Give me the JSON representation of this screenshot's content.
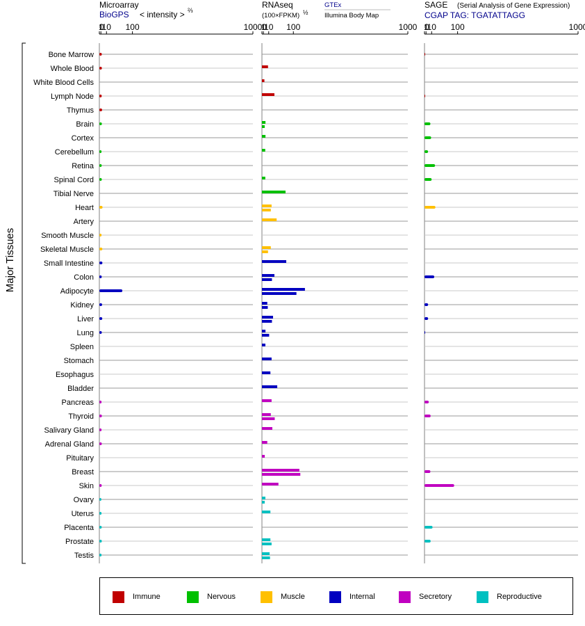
{
  "chart_data": {
    "type": "bar",
    "orientation": "horizontal",
    "axis_title": "Major Tissues",
    "axis_scale": "power 2/3",
    "ticks": [
      "0",
      "1",
      "10",
      "100",
      "1000"
    ],
    "tick_values": [
      0,
      1,
      10,
      100,
      1000
    ],
    "categories": [
      "Bone Marrow",
      "Whole Blood",
      "White Blood Cells",
      "Lymph Node",
      "Thymus",
      "Brain",
      "Cortex",
      "Cerebellum",
      "Retina",
      "Spinal Cord",
      "Tibial Nerve",
      "Heart",
      "Artery",
      "Smooth Muscle",
      "Skeletal Muscle",
      "Small Intestine",
      "Colon",
      "Adipocyte",
      "Kidney",
      "Liver",
      "Lung",
      "Spleen",
      "Stomach",
      "Esophagus",
      "Bladder",
      "Pancreas",
      "Thyroid",
      "Salivary Gland",
      "Adrenal Gland",
      "Pituitary",
      "Breast",
      "Skin",
      "Ovary",
      "Uterus",
      "Placenta",
      "Prostate",
      "Testis"
    ],
    "groups": [
      "Immune",
      "Immune",
      "Immune",
      "Immune",
      "Immune",
      "Nervous",
      "Nervous",
      "Nervous",
      "Nervous",
      "Nervous",
      "Nervous",
      "Muscle",
      "Muscle",
      "Muscle",
      "Muscle",
      "Internal",
      "Internal",
      "Internal",
      "Internal",
      "Internal",
      "Internal",
      "Internal",
      "Internal",
      "Internal",
      "Internal",
      "Secretory",
      "Secretory",
      "Secretory",
      "Secretory",
      "Secretory",
      "Secretory",
      "Secretory",
      "Reproductive",
      "Reproductive",
      "Reproductive",
      "Reproductive",
      "Reproductive"
    ],
    "group_colors": {
      "Immune": "#c00000",
      "Nervous": "#00c000",
      "Muscle": "#ffc000",
      "Internal": "#0000c0",
      "Secretory": "#c000c0",
      "Reproductive": "#00c0c0"
    },
    "legend": [
      "Immune",
      "Nervous",
      "Muscle",
      "Internal",
      "Secretory",
      "Reproductive"
    ],
    "legend_position": "bottom",
    "panels": [
      {
        "id": "microarray",
        "title": "Microarray",
        "subtitle_link": "BioGPS",
        "subtitle_text": "< intensity >",
        "subtitle_sup": "⅔",
        "values": [
          2.0,
          2.1,
          null,
          1.9,
          2.4,
          2.1,
          null,
          1.7,
          1.9,
          2.0,
          null,
          3.0,
          null,
          1.7,
          2.8,
          2.8,
          1.9,
          null,
          2.4,
          2.6,
          2.0,
          null,
          null,
          null,
          null,
          1.7,
          2.1,
          1.7,
          2.0,
          null,
          null,
          1.9,
          1.5,
          1.7,
          1.9,
          2.0,
          1.7
        ],
        "values_secondary": [
          null,
          null,
          null,
          null,
          null,
          null,
          null,
          null,
          null,
          null,
          null,
          null,
          null,
          null,
          null,
          null,
          null,
          58,
          null,
          null,
          null,
          null,
          null,
          null,
          null,
          null,
          null,
          null,
          null,
          null,
          null,
          null,
          null,
          null,
          null,
          null,
          null
        ]
      },
      {
        "id": "rnaseq",
        "title": "RNAseq",
        "subtitle_text": "(100×FPKM)",
        "subtitle_sup": "½",
        "legend_link": "GTEx",
        "legend_note": "Illumina Body Map",
        "values": [
          null,
          8.5,
          null,
          null,
          null,
          3.8,
          3.8,
          3.4,
          null,
          3.5,
          65,
          17,
          null,
          null,
          15,
          68,
          25,
          160,
          7,
          21,
          3.8,
          3.6,
          17,
          14,
          34,
          17,
          15,
          19,
          null,
          null,
          130,
          38,
          3.6,
          14,
          null,
          14,
          12
        ],
        "values_secondary": [
          null,
          null,
          2.2,
          25,
          null,
          2.6,
          null,
          null,
          null,
          null,
          null,
          15,
          32,
          null,
          8.5,
          null,
          18,
          115,
          8,
          18,
          11,
          null,
          null,
          null,
          null,
          null,
          26,
          null,
          7,
          2.7,
          135,
          null,
          2.6,
          null,
          null,
          17,
          13
        ]
      },
      {
        "id": "sage",
        "title": "SAGE",
        "subtitle_paren": "(Serial Analysis of Gene Expression)",
        "subtitle_link": "CGAP TAG: TGATATTAGG",
        "values": [
          0.04,
          null,
          null,
          0.04,
          null,
          7.5,
          9,
          3.5,
          18,
          10,
          null,
          19,
          null,
          null,
          null,
          null,
          16,
          null,
          3.6,
          3.6,
          0.04,
          null,
          null,
          null,
          null,
          4.6,
          8,
          null,
          null,
          null,
          7.5,
          85,
          null,
          null,
          12,
          8,
          null
        ]
      }
    ]
  }
}
